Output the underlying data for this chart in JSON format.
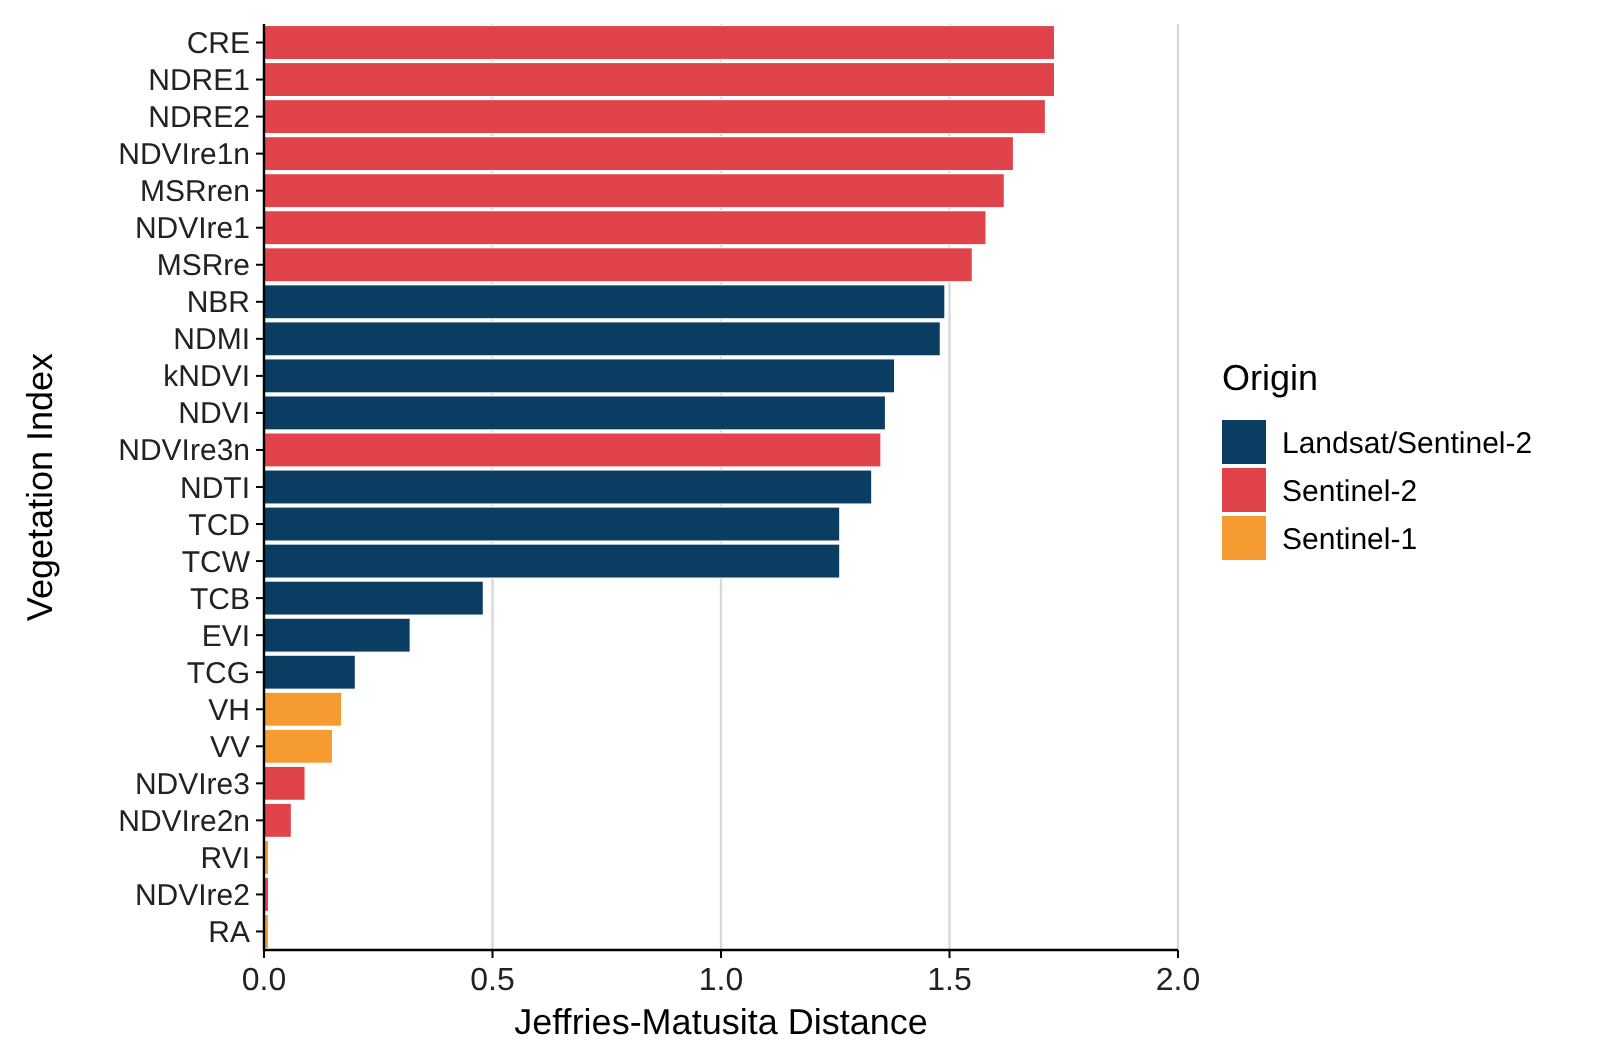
{
  "chart_data": {
    "type": "bar",
    "orientation": "horizontal",
    "stacked": true,
    "xlabel": "Jeffries-Matusita Distance",
    "ylabel": "Vegetation Index",
    "legend_title": "Origin",
    "legend": "right",
    "grid": "x",
    "categories": [
      "CRE",
      "NDRE1",
      "NDRE2",
      "NDVIre1n",
      "MSRren",
      "NDVIre1",
      "MSRre",
      "NBR",
      "NDMI",
      "kNDVI",
      "NDVI",
      "NDVIre3n",
      "NDTI",
      "TCD",
      "TCW",
      "TCB",
      "EVI",
      "TCG",
      "VH",
      "VV",
      "NDVIre3",
      "NDVIre2n",
      "RVI",
      "NDVIre2",
      "RA"
    ],
    "xlim": [
      0,
      2
    ],
    "xticks": [
      {
        "value": 0,
        "label": "0.0"
      },
      0.5,
      {
        "value": 1,
        "label": "1.0"
      },
      1.5,
      {
        "value": 2,
        "label": "2.0"
      }
    ],
    "series": [
      {
        "name": "Landsat/Sentinel-2",
        "color": "#0b3d62",
        "values": [
          null,
          null,
          null,
          null,
          null,
          null,
          null,
          1.49,
          1.48,
          1.38,
          1.36,
          null,
          1.33,
          1.26,
          1.26,
          0.48,
          0.32,
          0.2,
          null,
          null,
          null,
          null,
          null,
          null,
          null
        ]
      },
      {
        "name": "Sentinel-2",
        "color": "#e04349",
        "values": [
          1.73,
          1.73,
          1.71,
          1.64,
          1.62,
          1.58,
          1.55,
          null,
          null,
          null,
          null,
          1.35,
          null,
          null,
          null,
          null,
          null,
          null,
          null,
          null,
          0.09,
          0.06,
          null,
          0.01,
          null
        ]
      },
      {
        "name": "Sentinel-1",
        "color": "#f59b32",
        "values": [
          null,
          null,
          null,
          null,
          null,
          null,
          null,
          null,
          null,
          null,
          null,
          null,
          null,
          null,
          null,
          null,
          null,
          null,
          0.17,
          0.15,
          null,
          null,
          0.01,
          null,
          0.01
        ]
      }
    ]
  }
}
